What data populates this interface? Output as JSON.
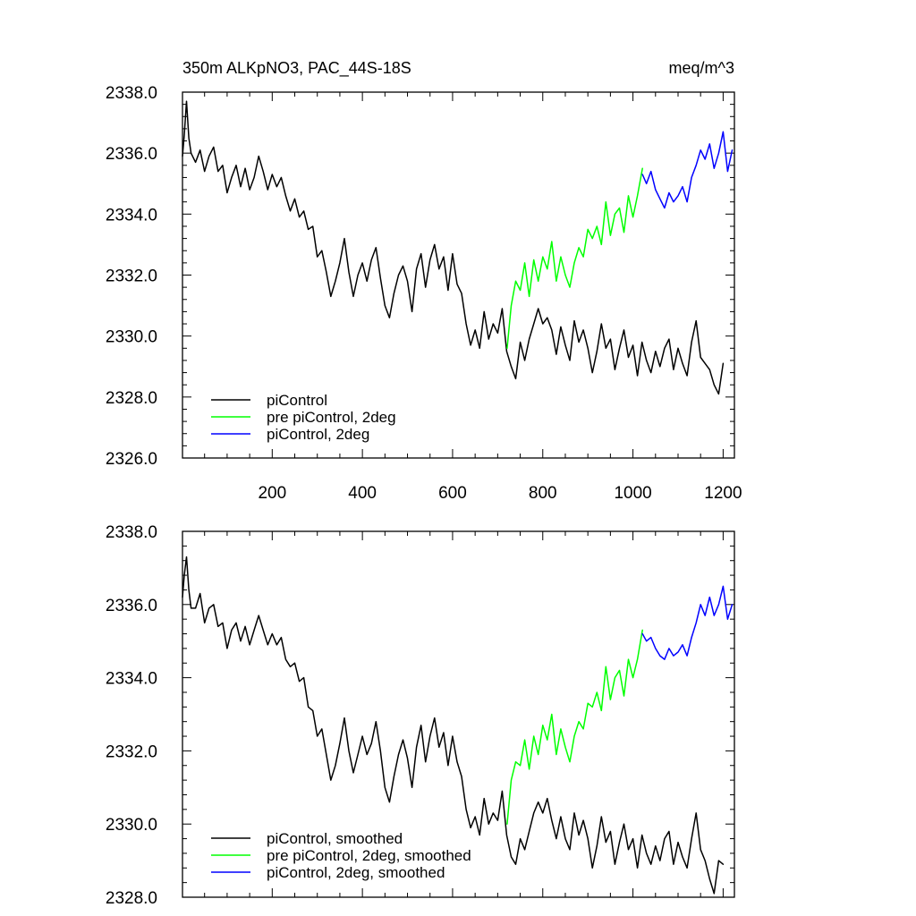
{
  "chart_data": [
    {
      "type": "line",
      "title": "350m ALKpNO3, PAC_44S-18S",
      "units": "meq/m^3",
      "xlabel": "",
      "ylabel": "",
      "xlim": [
        1,
        1225
      ],
      "ylim": [
        2326.0,
        2338.0
      ],
      "xticks": [
        200,
        400,
        600,
        800,
        1000,
        1200
      ],
      "yticks": [
        2326.0,
        2328.0,
        2330.0,
        2332.0,
        2334.0,
        2336.0,
        2338.0
      ],
      "xtick_labels": [
        "200",
        "400",
        "600",
        "800",
        "1000",
        "1200"
      ],
      "ytick_labels": [
        "2326.0",
        "2328.0",
        "2330.0",
        "2332.0",
        "2334.0",
        "2336.0",
        "2338.0"
      ],
      "legend_position": "bottom-left",
      "series": [
        {
          "name": "piControl",
          "color": "#000000",
          "x": [
            1,
            5,
            10,
            15,
            20,
            30,
            40,
            50,
            60,
            70,
            80,
            90,
            100,
            110,
            120,
            130,
            140,
            150,
            160,
            170,
            180,
            190,
            200,
            210,
            220,
            230,
            240,
            250,
            260,
            270,
            280,
            290,
            300,
            310,
            320,
            330,
            340,
            350,
            360,
            370,
            380,
            390,
            400,
            410,
            420,
            430,
            440,
            450,
            460,
            470,
            480,
            490,
            500,
            510,
            520,
            530,
            540,
            550,
            560,
            570,
            580,
            590,
            600,
            610,
            620,
            630,
            640,
            650,
            660,
            670,
            680,
            690,
            700,
            710,
            720,
            730,
            740,
            750,
            760,
            770,
            780,
            790,
            800,
            810,
            820,
            830,
            840,
            850,
            860,
            870,
            880,
            890,
            900,
            910,
            920,
            930,
            940,
            950,
            960,
            970,
            980,
            990,
            1000,
            1010,
            1020,
            1030,
            1040,
            1050,
            1060,
            1070,
            1080,
            1090,
            1100,
            1110,
            1120,
            1130,
            1140,
            1150,
            1160,
            1170,
            1180,
            1190,
            1200
          ],
          "values": [
            2335.9,
            2336.6,
            2337.7,
            2336.5,
            2336.0,
            2335.7,
            2336.1,
            2335.4,
            2335.9,
            2336.2,
            2335.4,
            2335.6,
            2334.7,
            2335.2,
            2335.6,
            2334.9,
            2335.5,
            2334.8,
            2335.2,
            2335.9,
            2335.4,
            2334.8,
            2335.3,
            2334.9,
            2335.2,
            2334.6,
            2334.1,
            2334.5,
            2333.9,
            2334.1,
            2333.5,
            2333.6,
            2332.6,
            2332.8,
            2332.1,
            2331.3,
            2331.8,
            2332.4,
            2333.2,
            2332.1,
            2331.3,
            2332.0,
            2332.4,
            2331.8,
            2332.5,
            2332.9,
            2331.9,
            2331.0,
            2330.6,
            2331.4,
            2332.0,
            2332.3,
            2331.8,
            2330.8,
            2332.2,
            2332.7,
            2331.6,
            2332.5,
            2333.0,
            2332.2,
            2332.6,
            2331.5,
            2332.7,
            2331.7,
            2331.4,
            2330.4,
            2329.7,
            2330.2,
            2329.6,
            2330.8,
            2329.9,
            2330.4,
            2330.1,
            2330.9,
            2329.5,
            2329.0,
            2328.6,
            2329.8,
            2329.2,
            2329.9,
            2330.4,
            2330.9,
            2330.4,
            2330.6,
            2330.2,
            2329.4,
            2330.3,
            2329.7,
            2329.2,
            2330.5,
            2329.8,
            2330.2,
            2329.6,
            2328.8,
            2329.5,
            2330.4,
            2329.6,
            2329.9,
            2328.9,
            2329.6,
            2330.2,
            2329.3,
            2329.7,
            2328.7,
            2329.8,
            2329.2,
            2328.8,
            2329.5,
            2329.0,
            2329.6,
            2329.9,
            2328.9,
            2329.6,
            2329.1,
            2328.7,
            2329.8,
            2330.5,
            2329.3,
            2329.1,
            2328.9,
            2328.4,
            2328.1,
            2329.1
          ]
        },
        {
          "name": "pre piControl, 2deg",
          "color": "#00ff00",
          "x": [
            721,
            730,
            740,
            750,
            760,
            770,
            780,
            790,
            800,
            810,
            820,
            830,
            840,
            850,
            860,
            870,
            880,
            890,
            900,
            910,
            920,
            930,
            940,
            950,
            960,
            970,
            980,
            990,
            1000,
            1010,
            1021
          ],
          "values": [
            2329.6,
            2331.0,
            2331.8,
            2331.5,
            2332.4,
            2331.3,
            2332.5,
            2331.8,
            2332.6,
            2332.2,
            2333.1,
            2331.8,
            2332.6,
            2332.0,
            2331.6,
            2332.4,
            2332.9,
            2332.6,
            2333.5,
            2333.2,
            2333.6,
            2333.0,
            2334.4,
            2333.3,
            2334.0,
            2334.2,
            2333.4,
            2334.6,
            2333.9,
            2334.6,
            2335.5
          ]
        },
        {
          "name": "piControl, 2deg",
          "color": "#0000ff",
          "x": [
            1021,
            1030,
            1040,
            1050,
            1060,
            1070,
            1080,
            1090,
            1100,
            1110,
            1120,
            1130,
            1140,
            1150,
            1160,
            1170,
            1180,
            1190,
            1200,
            1210,
            1220
          ],
          "values": [
            2335.3,
            2335.0,
            2335.4,
            2334.8,
            2334.5,
            2334.2,
            2334.7,
            2334.4,
            2334.6,
            2334.9,
            2334.4,
            2335.2,
            2335.6,
            2336.1,
            2335.8,
            2336.3,
            2335.5,
            2336.0,
            2336.7,
            2335.4,
            2336.1
          ]
        }
      ]
    },
    {
      "type": "line",
      "title": "",
      "xlabel": "",
      "ylabel": "",
      "xlim": [
        1,
        1225
      ],
      "ylim": [
        2328.0,
        2338.0
      ],
      "xticks": [
        200,
        400,
        600,
        800,
        1000,
        1200
      ],
      "yticks": [
        2328.0,
        2330.0,
        2332.0,
        2334.0,
        2336.0,
        2338.0
      ],
      "ytick_labels": [
        "2328.0",
        "2330.0",
        "2332.0",
        "2334.0",
        "2336.0",
        "2338.0"
      ],
      "legend_position": "bottom-left",
      "series": [
        {
          "name": "piControl, smoothed",
          "color": "#000000",
          "x": [
            1,
            5,
            10,
            15,
            20,
            30,
            40,
            50,
            60,
            70,
            80,
            90,
            100,
            110,
            120,
            130,
            140,
            150,
            160,
            170,
            180,
            190,
            200,
            210,
            220,
            230,
            240,
            250,
            260,
            270,
            280,
            290,
            300,
            310,
            320,
            330,
            340,
            350,
            360,
            370,
            380,
            390,
            400,
            410,
            420,
            430,
            440,
            450,
            460,
            470,
            480,
            490,
            500,
            510,
            520,
            530,
            540,
            550,
            560,
            570,
            580,
            590,
            600,
            610,
            620,
            630,
            640,
            650,
            660,
            670,
            680,
            690,
            700,
            710,
            720,
            730,
            740,
            750,
            760,
            770,
            780,
            790,
            800,
            810,
            820,
            830,
            840,
            850,
            860,
            870,
            880,
            890,
            900,
            910,
            920,
            930,
            940,
            950,
            960,
            970,
            980,
            990,
            1000,
            1010,
            1020,
            1030,
            1040,
            1050,
            1060,
            1070,
            1080,
            1090,
            1100,
            1110,
            1120,
            1130,
            1140,
            1150,
            1160,
            1170,
            1180,
            1190,
            1200
          ],
          "values": [
            2336.2,
            2336.8,
            2337.3,
            2336.4,
            2335.9,
            2335.9,
            2336.3,
            2335.5,
            2335.9,
            2336.0,
            2335.4,
            2335.5,
            2334.8,
            2335.3,
            2335.5,
            2335.0,
            2335.4,
            2334.9,
            2335.3,
            2335.7,
            2335.3,
            2334.9,
            2335.2,
            2334.9,
            2335.1,
            2334.5,
            2334.3,
            2334.4,
            2333.9,
            2334.0,
            2333.2,
            2333.1,
            2332.4,
            2332.6,
            2331.9,
            2331.2,
            2331.6,
            2332.2,
            2332.9,
            2332.0,
            2331.4,
            2331.9,
            2332.4,
            2331.9,
            2332.2,
            2332.8,
            2332.0,
            2331.0,
            2330.6,
            2331.3,
            2331.9,
            2332.3,
            2331.8,
            2331.0,
            2332.1,
            2332.7,
            2331.7,
            2332.4,
            2332.9,
            2332.1,
            2332.5,
            2331.6,
            2332.4,
            2331.7,
            2331.3,
            2330.4,
            2329.9,
            2330.2,
            2329.7,
            2330.7,
            2330.0,
            2330.3,
            2330.1,
            2330.9,
            2329.7,
            2329.1,
            2328.9,
            2329.6,
            2329.3,
            2329.8,
            2330.3,
            2330.6,
            2330.3,
            2330.7,
            2330.1,
            2329.6,
            2330.2,
            2329.6,
            2329.3,
            2330.3,
            2329.7,
            2330.1,
            2329.6,
            2328.8,
            2329.4,
            2330.2,
            2329.5,
            2329.8,
            2328.9,
            2329.5,
            2330.0,
            2329.3,
            2329.6,
            2328.8,
            2329.7,
            2329.2,
            2328.9,
            2329.4,
            2329.0,
            2329.6,
            2329.8,
            2328.9,
            2329.5,
            2329.1,
            2328.8,
            2329.6,
            2330.3,
            2329.3,
            2329.0,
            2328.5,
            2328.1,
            2329.0,
            2328.9
          ]
        },
        {
          "name": "pre piControl, 2deg, smoothed",
          "color": "#00ff00",
          "x": [
            721,
            730,
            740,
            750,
            760,
            770,
            780,
            790,
            800,
            810,
            820,
            830,
            840,
            850,
            860,
            870,
            880,
            890,
            900,
            910,
            920,
            930,
            940,
            950,
            960,
            970,
            980,
            990,
            1000,
            1010,
            1021
          ],
          "values": [
            2330.0,
            2331.2,
            2331.7,
            2331.6,
            2332.3,
            2331.5,
            2332.4,
            2331.9,
            2332.7,
            2332.3,
            2333.0,
            2331.9,
            2332.6,
            2332.1,
            2331.7,
            2332.4,
            2332.8,
            2332.6,
            2333.3,
            2333.2,
            2333.6,
            2333.1,
            2334.3,
            2333.4,
            2334.0,
            2334.2,
            2333.5,
            2334.5,
            2334.0,
            2334.5,
            2335.3
          ]
        },
        {
          "name": "piControl, 2deg, smoothed",
          "color": "#0000ff",
          "x": [
            1021,
            1030,
            1040,
            1050,
            1060,
            1070,
            1080,
            1090,
            1100,
            1110,
            1120,
            1130,
            1140,
            1150,
            1160,
            1170,
            1180,
            1190,
            1200,
            1210,
            1220
          ],
          "values": [
            2335.2,
            2335.0,
            2335.1,
            2334.8,
            2334.6,
            2334.5,
            2334.8,
            2334.6,
            2334.7,
            2334.9,
            2334.6,
            2335.1,
            2335.5,
            2336.0,
            2335.7,
            2336.2,
            2335.7,
            2336.0,
            2336.5,
            2335.6,
            2336.0
          ]
        }
      ]
    }
  ]
}
